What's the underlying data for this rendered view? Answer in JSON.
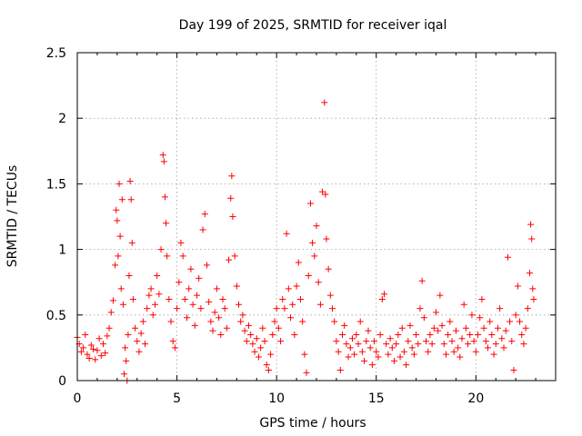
{
  "chart_data": {
    "type": "scatter",
    "title": "Day 199 of 2025, SRMTID for receiver iqal",
    "xlabel": "GPS time / hours",
    "ylabel": "SRMTID / TECUs",
    "xlim": [
      0,
      24
    ],
    "ylim": [
      0,
      2.5
    ],
    "xticks": [
      0,
      5,
      10,
      15,
      20
    ],
    "xtick_labels": [
      "0",
      "5",
      "10",
      "15",
      "20"
    ],
    "yticks": [
      0,
      0.5,
      1,
      1.5,
      2,
      2.5
    ],
    "ytick_labels": [
      "0",
      "0.5",
      "1",
      "1.5",
      "2",
      "2.5"
    ],
    "grid": true,
    "marker": "+",
    "color": "#ff0000",
    "series": [
      {
        "name": "SRMTID",
        "points": [
          [
            0.0,
            0.33
          ],
          [
            0.1,
            0.28
          ],
          [
            0.2,
            0.22
          ],
          [
            0.3,
            0.25
          ],
          [
            0.4,
            0.35
          ],
          [
            0.5,
            0.2
          ],
          [
            0.6,
            0.17
          ],
          [
            0.7,
            0.27
          ],
          [
            0.8,
            0.24
          ],
          [
            0.9,
            0.16
          ],
          [
            1.0,
            0.23
          ],
          [
            1.1,
            0.32
          ],
          [
            1.2,
            0.19
          ],
          [
            1.3,
            0.28
          ],
          [
            1.4,
            0.21
          ],
          [
            1.5,
            0.34
          ],
          [
            1.6,
            0.4
          ],
          [
            1.7,
            0.52
          ],
          [
            1.8,
            0.61
          ],
          [
            1.9,
            0.88
          ],
          [
            1.95,
            1.3
          ],
          [
            2.0,
            1.22
          ],
          [
            2.05,
            0.95
          ],
          [
            2.1,
            1.5
          ],
          [
            2.15,
            1.1
          ],
          [
            2.2,
            0.7
          ],
          [
            2.25,
            1.38
          ],
          [
            2.3,
            0.58
          ],
          [
            2.35,
            0.05
          ],
          [
            2.4,
            0.25
          ],
          [
            2.45,
            0.15
          ],
          [
            2.5,
            0.0
          ],
          [
            2.55,
            0.35
          ],
          [
            2.6,
            0.8
          ],
          [
            2.65,
            1.52
          ],
          [
            2.7,
            1.38
          ],
          [
            2.75,
            1.05
          ],
          [
            2.8,
            0.62
          ],
          [
            2.9,
            0.4
          ],
          [
            3.0,
            0.3
          ],
          [
            3.1,
            0.22
          ],
          [
            3.2,
            0.36
          ],
          [
            3.3,
            0.45
          ],
          [
            3.4,
            0.28
          ],
          [
            3.5,
            0.55
          ],
          [
            3.6,
            0.65
          ],
          [
            3.7,
            0.7
          ],
          [
            3.8,
            0.5
          ],
          [
            3.9,
            0.58
          ],
          [
            4.0,
            0.8
          ],
          [
            4.1,
            0.66
          ],
          [
            4.2,
            1.0
          ],
          [
            4.3,
            1.72
          ],
          [
            4.35,
            1.67
          ],
          [
            4.4,
            1.4
          ],
          [
            4.45,
            1.2
          ],
          [
            4.5,
            0.95
          ],
          [
            4.6,
            0.62
          ],
          [
            4.7,
            0.45
          ],
          [
            4.8,
            0.3
          ],
          [
            4.9,
            0.25
          ],
          [
            5.0,
            0.55
          ],
          [
            5.1,
            0.75
          ],
          [
            5.2,
            1.05
          ],
          [
            5.3,
            0.95
          ],
          [
            5.4,
            0.62
          ],
          [
            5.5,
            0.48
          ],
          [
            5.6,
            0.7
          ],
          [
            5.7,
            0.85
          ],
          [
            5.8,
            0.58
          ],
          [
            5.9,
            0.42
          ],
          [
            6.0,
            0.65
          ],
          [
            6.1,
            0.78
          ],
          [
            6.2,
            0.55
          ],
          [
            6.3,
            1.15
          ],
          [
            6.4,
            1.27
          ],
          [
            6.5,
            0.88
          ],
          [
            6.6,
            0.6
          ],
          [
            6.7,
            0.45
          ],
          [
            6.8,
            0.38
          ],
          [
            6.9,
            0.52
          ],
          [
            7.0,
            0.7
          ],
          [
            7.1,
            0.48
          ],
          [
            7.2,
            0.35
          ],
          [
            7.3,
            0.62
          ],
          [
            7.4,
            0.55
          ],
          [
            7.5,
            0.4
          ],
          [
            7.6,
            0.92
          ],
          [
            7.7,
            1.39
          ],
          [
            7.75,
            1.56
          ],
          [
            7.8,
            1.25
          ],
          [
            7.9,
            0.95
          ],
          [
            8.0,
            0.72
          ],
          [
            8.1,
            0.58
          ],
          [
            8.2,
            0.45
          ],
          [
            8.3,
            0.5
          ],
          [
            8.4,
            0.38
          ],
          [
            8.5,
            0.3
          ],
          [
            8.6,
            0.42
          ],
          [
            8.7,
            0.35
          ],
          [
            8.8,
            0.28
          ],
          [
            8.9,
            0.22
          ],
          [
            9.0,
            0.32
          ],
          [
            9.1,
            0.18
          ],
          [
            9.2,
            0.25
          ],
          [
            9.3,
            0.4
          ],
          [
            9.4,
            0.3
          ],
          [
            9.5,
            0.12
          ],
          [
            9.6,
            0.08
          ],
          [
            9.7,
            0.2
          ],
          [
            9.8,
            0.35
          ],
          [
            9.9,
            0.45
          ],
          [
            10.0,
            0.55
          ],
          [
            10.1,
            0.4
          ],
          [
            10.2,
            0.3
          ],
          [
            10.3,
            0.62
          ],
          [
            10.4,
            0.55
          ],
          [
            10.5,
            1.12
          ],
          [
            10.6,
            0.7
          ],
          [
            10.7,
            0.48
          ],
          [
            10.8,
            0.58
          ],
          [
            10.9,
            0.35
          ],
          [
            11.0,
            0.72
          ],
          [
            11.1,
            0.9
          ],
          [
            11.2,
            0.62
          ],
          [
            11.3,
            0.45
          ],
          [
            11.4,
            0.2
          ],
          [
            11.5,
            0.06
          ],
          [
            11.6,
            0.8
          ],
          [
            11.7,
            1.35
          ],
          [
            11.8,
            1.05
          ],
          [
            11.9,
            0.95
          ],
          [
            12.0,
            1.18
          ],
          [
            12.1,
            0.75
          ],
          [
            12.2,
            0.58
          ],
          [
            12.3,
            1.44
          ],
          [
            12.4,
            2.12
          ],
          [
            12.45,
            1.42
          ],
          [
            12.5,
            1.08
          ],
          [
            12.6,
            0.85
          ],
          [
            12.7,
            0.65
          ],
          [
            12.8,
            0.55
          ],
          [
            12.9,
            0.45
          ],
          [
            13.0,
            0.3
          ],
          [
            13.1,
            0.22
          ],
          [
            13.2,
            0.08
          ],
          [
            13.3,
            0.35
          ],
          [
            13.4,
            0.42
          ],
          [
            13.5,
            0.28
          ],
          [
            13.6,
            0.18
          ],
          [
            13.7,
            0.25
          ],
          [
            13.8,
            0.32
          ],
          [
            13.9,
            0.2
          ],
          [
            14.0,
            0.35
          ],
          [
            14.1,
            0.28
          ],
          [
            14.2,
            0.45
          ],
          [
            14.3,
            0.22
          ],
          [
            14.4,
            0.15
          ],
          [
            14.5,
            0.3
          ],
          [
            14.6,
            0.38
          ],
          [
            14.7,
            0.25
          ],
          [
            14.8,
            0.12
          ],
          [
            14.9,
            0.3
          ],
          [
            15.0,
            0.22
          ],
          [
            15.1,
            0.18
          ],
          [
            15.2,
            0.35
          ],
          [
            15.3,
            0.62
          ],
          [
            15.4,
            0.66
          ],
          [
            15.5,
            0.28
          ],
          [
            15.6,
            0.2
          ],
          [
            15.7,
            0.32
          ],
          [
            15.8,
            0.25
          ],
          [
            15.9,
            0.15
          ],
          [
            16.0,
            0.28
          ],
          [
            16.1,
            0.35
          ],
          [
            16.2,
            0.18
          ],
          [
            16.3,
            0.4
          ],
          [
            16.4,
            0.22
          ],
          [
            16.5,
            0.12
          ],
          [
            16.6,
            0.3
          ],
          [
            16.7,
            0.42
          ],
          [
            16.8,
            0.25
          ],
          [
            16.9,
            0.2
          ],
          [
            17.0,
            0.35
          ],
          [
            17.1,
            0.28
          ],
          [
            17.2,
            0.55
          ],
          [
            17.3,
            0.76
          ],
          [
            17.4,
            0.48
          ],
          [
            17.5,
            0.3
          ],
          [
            17.6,
            0.22
          ],
          [
            17.7,
            0.35
          ],
          [
            17.8,
            0.28
          ],
          [
            17.9,
            0.4
          ],
          [
            18.0,
            0.52
          ],
          [
            18.1,
            0.38
          ],
          [
            18.2,
            0.65
          ],
          [
            18.3,
            0.42
          ],
          [
            18.4,
            0.28
          ],
          [
            18.5,
            0.2
          ],
          [
            18.6,
            0.35
          ],
          [
            18.7,
            0.45
          ],
          [
            18.8,
            0.3
          ],
          [
            18.9,
            0.22
          ],
          [
            19.0,
            0.38
          ],
          [
            19.1,
            0.25
          ],
          [
            19.2,
            0.18
          ],
          [
            19.3,
            0.32
          ],
          [
            19.4,
            0.58
          ],
          [
            19.5,
            0.4
          ],
          [
            19.6,
            0.28
          ],
          [
            19.7,
            0.35
          ],
          [
            19.8,
            0.5
          ],
          [
            19.9,
            0.3
          ],
          [
            20.0,
            0.22
          ],
          [
            20.1,
            0.35
          ],
          [
            20.2,
            0.48
          ],
          [
            20.3,
            0.62
          ],
          [
            20.4,
            0.4
          ],
          [
            20.5,
            0.3
          ],
          [
            20.6,
            0.25
          ],
          [
            20.7,
            0.45
          ],
          [
            20.8,
            0.35
          ],
          [
            20.9,
            0.2
          ],
          [
            21.0,
            0.28
          ],
          [
            21.1,
            0.4
          ],
          [
            21.2,
            0.55
          ],
          [
            21.3,
            0.32
          ],
          [
            21.4,
            0.25
          ],
          [
            21.5,
            0.38
          ],
          [
            21.6,
            0.94
          ],
          [
            21.7,
            0.45
          ],
          [
            21.8,
            0.3
          ],
          [
            21.9,
            0.08
          ],
          [
            22.0,
            0.5
          ],
          [
            22.1,
            0.72
          ],
          [
            22.2,
            0.45
          ],
          [
            22.3,
            0.35
          ],
          [
            22.4,
            0.28
          ],
          [
            22.5,
            0.4
          ],
          [
            22.6,
            0.55
          ],
          [
            22.7,
            0.82
          ],
          [
            22.75,
            1.19
          ],
          [
            22.8,
            1.08
          ],
          [
            22.85,
            0.7
          ],
          [
            22.9,
            0.62
          ]
        ]
      }
    ]
  }
}
